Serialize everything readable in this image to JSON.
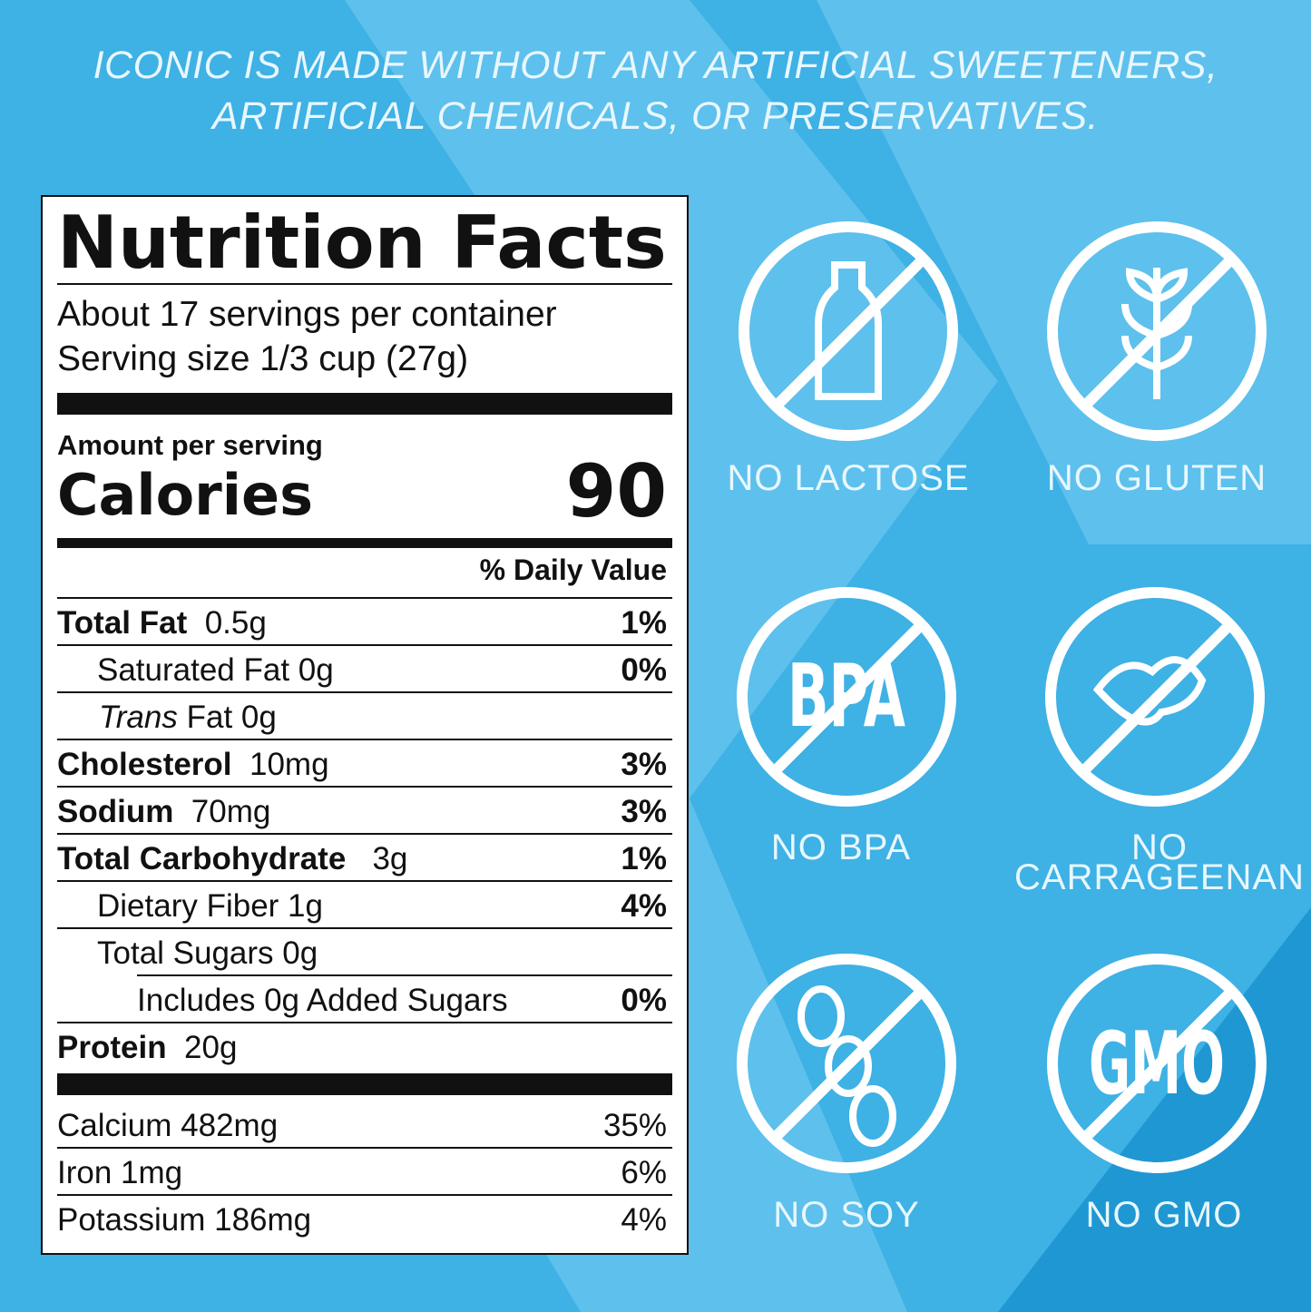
{
  "header": {
    "lines": [
      "ICONIC IS MADE WITHOUT ANY ARTIFICIAL SWEETENERS,",
      "ARTIFICIAL CHEMICALS, OR PRESERVATIVES."
    ]
  },
  "nutrition": {
    "title": "Nutrition Facts",
    "servings": "About 17 servings per container",
    "serving_size": "Serving size 1/3 cup (27g)",
    "amount_label": "Amount per serving",
    "calories_label": "Calories",
    "calories": 90,
    "dv_header": "% Daily Value",
    "total_fat": [
      "Total Fat",
      "0.5g",
      "1%"
    ],
    "saturated_fat": [
      "Saturated Fat 0g",
      "0%"
    ],
    "trans_fat": [
      "Trans",
      "Fat 0g"
    ],
    "cholesterol": [
      "Cholesterol",
      "10mg",
      "3%"
    ],
    "sodium": [
      "Sodium",
      "70mg",
      "3%"
    ],
    "total_carbohydrate": [
      "Total Carbohydrate",
      "3g",
      "1%"
    ],
    "dietary_fiber": [
      "Dietary Fiber 1g",
      "4%"
    ],
    "total_sugars": [
      "Total Sugars 0g"
    ],
    "added_sugars": [
      "Includes 0g Added Sugars",
      "0%"
    ],
    "protein": [
      "Protein",
      "20g"
    ],
    "minerals": [
      [
        "Calcium 482mg",
        "35%"
      ],
      [
        "Iron 1mg",
        "6%"
      ],
      [
        "Potassium 186mg",
        "4%"
      ]
    ]
  },
  "badges": [
    {
      "label": [
        "NO LACTOSE"
      ]
    },
    {
      "label": [
        "NO GLUTEN"
      ]
    },
    {
      "label": [
        "NO BPA"
      ],
      "icon_text": "BPA"
    },
    {
      "label": [
        "NO",
        "CARRAGEENAN"
      ]
    },
    {
      "label": [
        "NO SOY"
      ]
    },
    {
      "label": [
        "NO GMO"
      ],
      "icon_text": "GMO"
    }
  ]
}
